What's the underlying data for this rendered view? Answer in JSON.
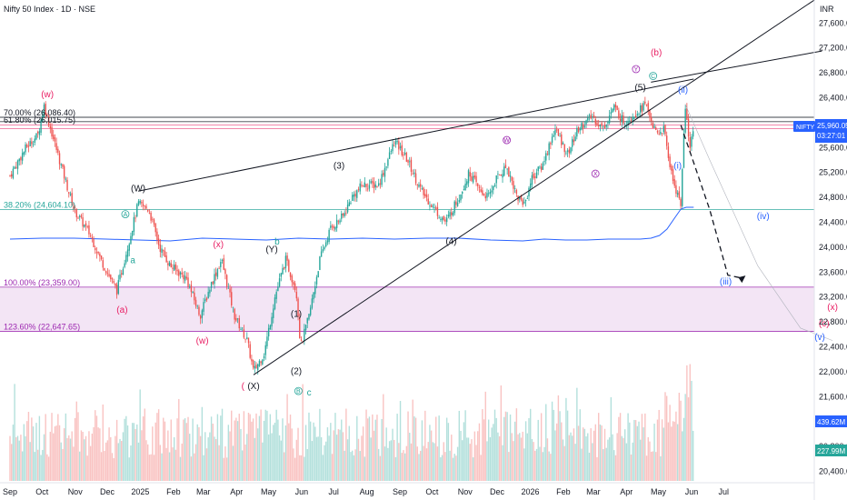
{
  "header": {
    "title": "Nifty 50 Index · 1D · NSE",
    "currency": "INR"
  },
  "price_axis": {
    "ticks": [
      "27,600.00",
      "27,200.00",
      "26,800.00",
      "26,400.00",
      "26,000.00",
      "25,600.00",
      "25,200.00",
      "24,800.00",
      "24,400.00",
      "24,000.00",
      "23,600.00",
      "23,200.00",
      "22,800.00",
      "22,400.00",
      "22,000.00",
      "21,600.00",
      "21,200.00",
      "20,800.00",
      "20,400.00"
    ]
  },
  "badges": {
    "symbol": "NIFTY",
    "price": "25,960.05",
    "countdown": "03:27:01",
    "volume_ma": "439.62M",
    "volume": "227.99M"
  },
  "colors": {
    "up": "#26a69a",
    "down": "#ef5350",
    "fib_teal": "#26a69a",
    "fib_purple": "#9c27b0",
    "zone": "#f3e5f5",
    "wave_red": "#e91e63",
    "wave_blue": "#2962ff",
    "wave_black": "#131722",
    "vol_ma": "#2962ff"
  },
  "fib_labels": [
    {
      "text": "70.00% (26,086.40)",
      "price": 26086,
      "color": "#131722"
    },
    {
      "text": "61.80% (26,015.75)",
      "price": 26016,
      "color": "#131722"
    },
    {
      "text": "38.20% (24,604.10)",
      "price": 24604,
      "color": "#26a69a"
    },
    {
      "text": "100.00% (23,359.00)",
      "price": 23359,
      "color": "#9c27b0"
    },
    {
      "text": "123.60% (22,647.65)",
      "price": 22648,
      "color": "#9c27b0"
    }
  ],
  "wave_labels": [
    {
      "text": "(w)",
      "color": "#e91e63",
      "day": 35,
      "price": 26410
    },
    {
      "text": "(W)",
      "color": "#131722",
      "day": 120,
      "price": 24900
    },
    {
      "text": "a",
      "color": "#26a69a",
      "day": 115,
      "price": 23740
    },
    {
      "text": "(a)",
      "color": "#e91e63",
      "day": 105,
      "price": 22950
    },
    {
      "text": "(x)",
      "color": "#e91e63",
      "day": 195,
      "price": 24000
    },
    {
      "text": "(w)",
      "color": "#e91e63",
      "day": 180,
      "price": 22450
    },
    {
      "text": "(Y)",
      "color": "#131722",
      "day": 245,
      "price": 23920
    },
    {
      "text": "b",
      "color": "#26a69a",
      "day": 250,
      "price": 24040
    },
    {
      "text": "(1)",
      "color": "#131722",
      "day": 268,
      "price": 22880
    },
    {
      "text": "(2)",
      "color": "#131722",
      "day": 268,
      "price": 21960
    },
    {
      "text": "(X)",
      "color": "#131722",
      "day": 228,
      "price": 21720
    },
    {
      "text": "(",
      "color": "#e91e63",
      "day": 218,
      "price": 21720
    },
    {
      "text": "c",
      "color": "#26a69a",
      "day": 280,
      "price": 21620
    },
    {
      "text": "(3)",
      "color": "#131722",
      "day": 308,
      "price": 25260
    },
    {
      "text": "(4)",
      "color": "#131722",
      "day": 413,
      "price": 24050
    },
    {
      "text": "(5)",
      "color": "#131722",
      "day": 590,
      "price": 26520
    },
    {
      "text": "(b)",
      "color": "#e91e63",
      "day": 605,
      "price": 27080
    },
    {
      "text": "(ii)",
      "color": "#2962ff",
      "day": 630,
      "price": 26480
    },
    {
      "text": "(i)",
      "color": "#2962ff",
      "day": 625,
      "price": 25260
    },
    {
      "text": "(iii)",
      "color": "#2962ff",
      "day": 670,
      "price": 23400
    },
    {
      "text": "(iv)",
      "color": "#2962ff",
      "day": 705,
      "price": 24450
    },
    {
      "text": "(x)",
      "color": "#e91e63",
      "day": 770,
      "price": 22990
    },
    {
      "text": "(c)",
      "color": "#e91e63",
      "day": 762,
      "price": 22730
    },
    {
      "text": "(v)",
      "color": "#2962ff",
      "day": 758,
      "price": 22510
    }
  ],
  "circle_labels": [
    {
      "text": "A",
      "color": "#26a69a",
      "day": 108,
      "price": 24530
    },
    {
      "text": "B",
      "color": "#26a69a",
      "day": 270,
      "price": 21690
    },
    {
      "text": "W",
      "color": "#9c27b0",
      "day": 465,
      "price": 25720
    },
    {
      "text": "X",
      "color": "#9c27b0",
      "day": 548,
      "price": 25180
    },
    {
      "text": "Y",
      "color": "#9c27b0",
      "day": 586,
      "price": 26860
    },
    {
      "text": "C",
      "color": "#26a69a",
      "day": 602,
      "price": 26750
    }
  ],
  "chart_data": {
    "type": "candlestick",
    "title": "Nifty 50 Index · 1D · NSE",
    "xlabel": "",
    "ylabel": "INR",
    "ylim": [
      20300,
      28000
    ],
    "x_ticks": [
      "Sep",
      "Oct",
      "Nov",
      "Dec",
      "2025",
      "Feb",
      "Mar",
      "Apr",
      "May",
      "Jun",
      "Jul",
      "Aug",
      "Sep",
      "Oct",
      "Nov",
      "Dec",
      "2026",
      "Feb",
      "Mar",
      "Apr",
      "May",
      "Jun",
      "Jul"
    ],
    "x_tick_days": [
      0,
      30,
      61,
      91,
      122,
      153,
      181,
      212,
      242,
      273,
      303,
      334,
      365,
      395,
      426,
      456,
      487,
      518,
      546,
      577,
      607,
      638,
      668
    ],
    "close_path": [
      [
        0,
        25150
      ],
      [
        15,
        25600
      ],
      [
        26,
        25800
      ],
      [
        32,
        26280
      ],
      [
        38,
        25900
      ],
      [
        48,
        25300
      ],
      [
        60,
        24600
      ],
      [
        75,
        24200
      ],
      [
        85,
        23800
      ],
      [
        100,
        23300
      ],
      [
        110,
        24000
      ],
      [
        120,
        24700
      ],
      [
        130,
        24600
      ],
      [
        140,
        24000
      ],
      [
        150,
        23700
      ],
      [
        165,
        23500
      ],
      [
        178,
        22900
      ],
      [
        188,
        23400
      ],
      [
        198,
        23800
      ],
      [
        210,
        22900
      ],
      [
        222,
        22500
      ],
      [
        228,
        22000
      ],
      [
        238,
        22300
      ],
      [
        248,
        23200
      ],
      [
        258,
        23800
      ],
      [
        268,
        23300
      ],
      [
        272,
        22400
      ],
      [
        280,
        22900
      ],
      [
        290,
        23800
      ],
      [
        300,
        24300
      ],
      [
        312,
        24500
      ],
      [
        320,
        24800
      ],
      [
        330,
        25000
      ],
      [
        345,
        25000
      ],
      [
        360,
        25700
      ],
      [
        372,
        25400
      ],
      [
        385,
        24900
      ],
      [
        398,
        24600
      ],
      [
        408,
        24400
      ],
      [
        420,
        24800
      ],
      [
        430,
        25200
      ],
      [
        440,
        24900
      ],
      [
        448,
        24800
      ],
      [
        455,
        25100
      ],
      [
        465,
        25300
      ],
      [
        475,
        24800
      ],
      [
        482,
        24700
      ],
      [
        488,
        25100
      ],
      [
        498,
        25300
      ],
      [
        510,
        25900
      ],
      [
        522,
        25500
      ],
      [
        532,
        25900
      ],
      [
        545,
        26100
      ],
      [
        555,
        25900
      ],
      [
        565,
        26250
      ],
      [
        575,
        26000
      ],
      [
        585,
        26150
      ],
      [
        595,
        26300
      ],
      [
        605,
        25800
      ],
      [
        612,
        25900
      ],
      [
        620,
        25100
      ],
      [
        628,
        24700
      ],
      [
        632,
        26300
      ],
      [
        636,
        25600
      ],
      [
        640,
        25900
      ]
    ],
    "volume_ma_path": [
      [
        0,
        263
      ],
      [
        30,
        262
      ],
      [
        60,
        262
      ],
      [
        90,
        263
      ],
      [
        120,
        264
      ],
      [
        150,
        265
      ],
      [
        180,
        262
      ],
      [
        210,
        263
      ],
      [
        240,
        264
      ],
      [
        270,
        262
      ],
      [
        300,
        263
      ],
      [
        330,
        262
      ],
      [
        360,
        263
      ],
      [
        390,
        262
      ],
      [
        420,
        262
      ],
      [
        450,
        264
      ],
      [
        480,
        265
      ],
      [
        500,
        263
      ],
      [
        520,
        264
      ],
      [
        540,
        264
      ],
      [
        560,
        263
      ],
      [
        575,
        263
      ],
      [
        590,
        263
      ],
      [
        600,
        262
      ],
      [
        608,
        259
      ],
      [
        615,
        252
      ],
      [
        622,
        240
      ],
      [
        628,
        230
      ],
      [
        633,
        228
      ],
      [
        640,
        228
      ]
    ],
    "zone": {
      "from": 22648,
      "to": 23359
    },
    "lines": [
      {
        "name": "upper-channel",
        "from": [
          120,
          24900
        ],
        "to": [
          640,
          26700
        ]
      },
      {
        "name": "lower-channel",
        "from": [
          228,
          21950
        ],
        "to": [
          760,
          28050
        ]
      },
      {
        "name": "rising-line",
        "from": [
          600,
          26650
        ],
        "to": [
          760,
          27150
        ]
      }
    ],
    "projection": [
      [
        628,
        25960
      ],
      [
        655,
        24600
      ],
      [
        672,
        23550
      ],
      [
        686,
        23500
      ]
    ]
  }
}
